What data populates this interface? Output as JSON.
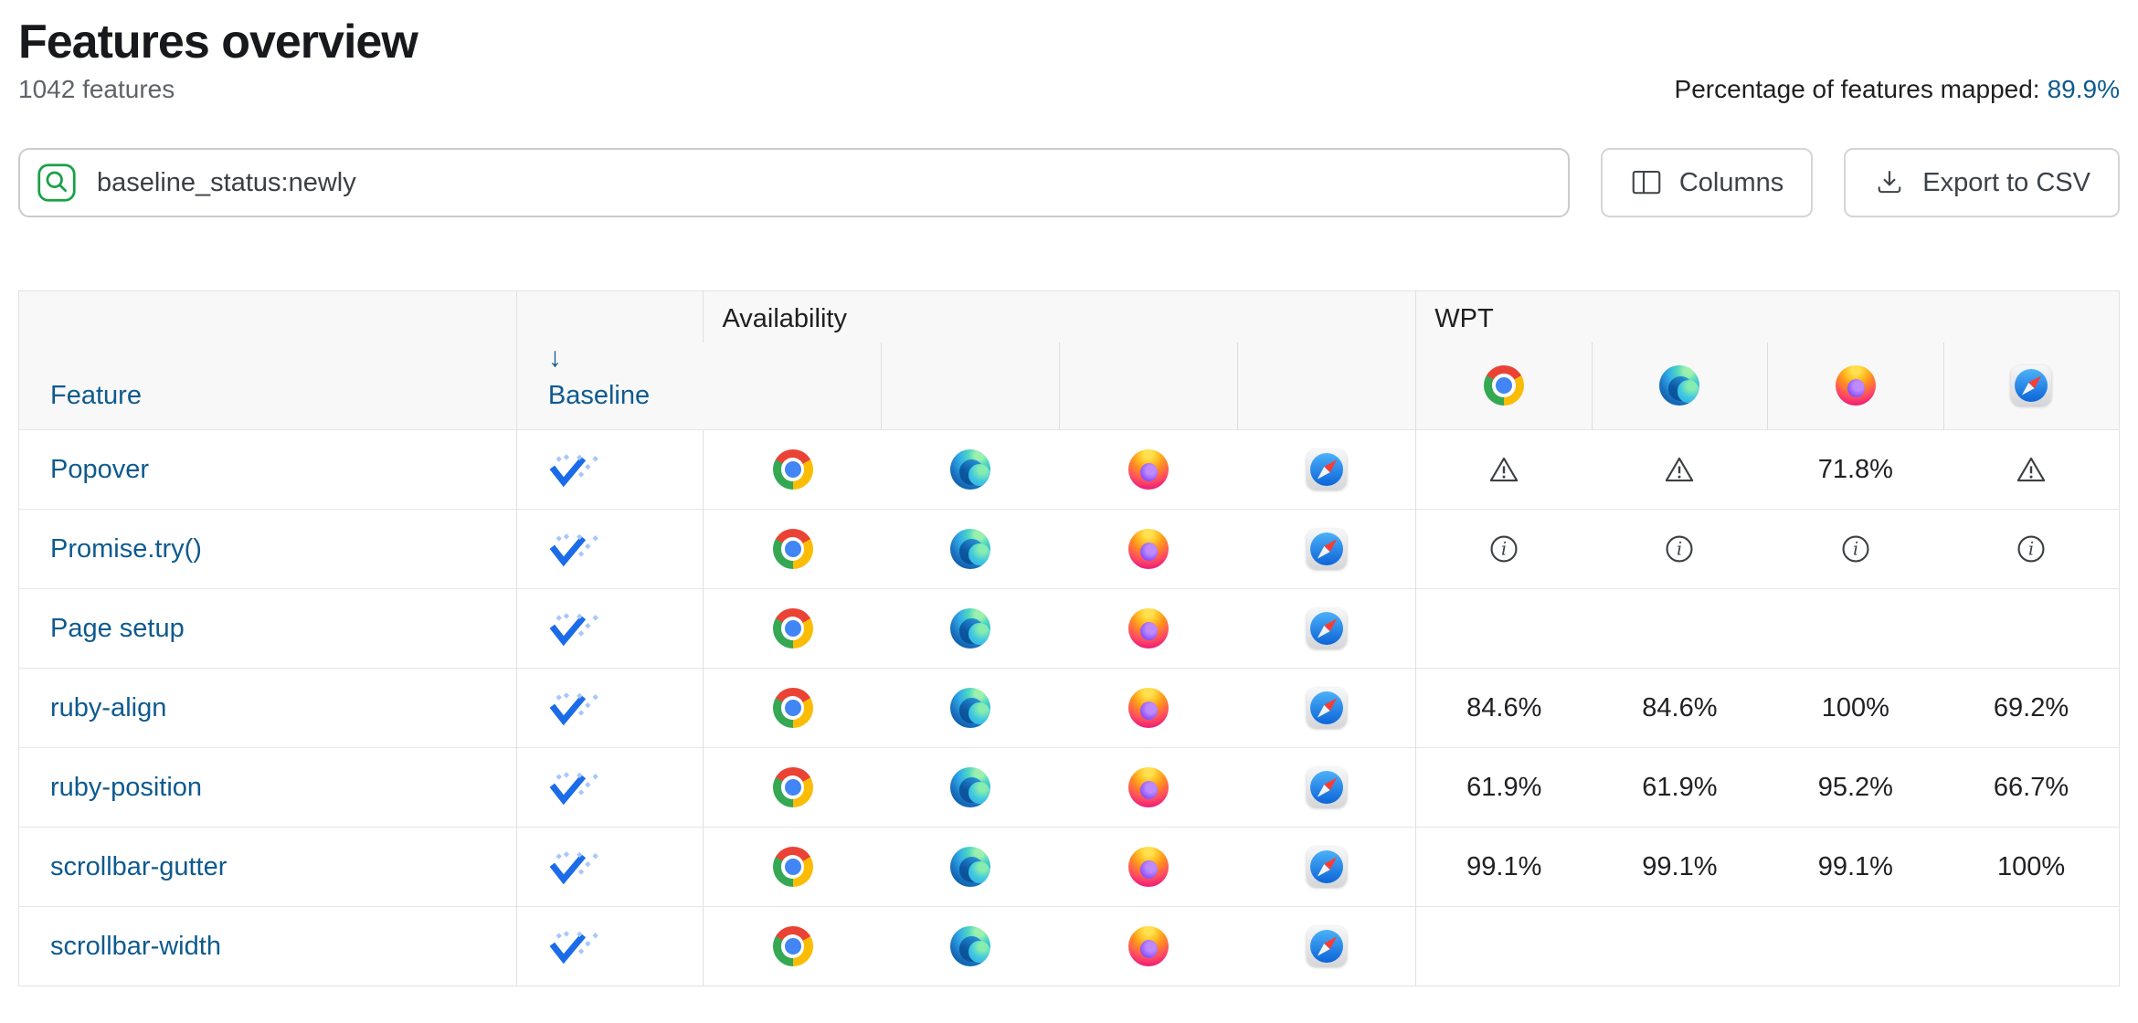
{
  "page": {
    "title": "Features overview",
    "feature_count": "1042 features",
    "mapped_label": "Percentage of features mapped:",
    "mapped_value": "89.9%"
  },
  "toolbar": {
    "search_value": "baseline_status:newly",
    "columns_label": "Columns",
    "export_label": "Export to CSV"
  },
  "table": {
    "headers": {
      "feature": "Feature",
      "baseline": "Baseline",
      "sort_arrow": "↓",
      "availability": "Availability",
      "wpt": "WPT"
    },
    "browsers": [
      "chrome",
      "edge",
      "firefox",
      "safari"
    ],
    "rows": [
      {
        "feature": "Popover",
        "baseline": "newly",
        "availability": [
          "chrome",
          "edge",
          "firefox",
          "safari"
        ],
        "wpt": [
          {
            "icon": "warning"
          },
          {
            "icon": "warning"
          },
          {
            "value": "71.8%"
          },
          {
            "icon": "warning"
          }
        ]
      },
      {
        "feature": "Promise.try()",
        "baseline": "newly",
        "availability": [
          "chrome",
          "edge",
          "firefox",
          "safari"
        ],
        "wpt": [
          {
            "icon": "info"
          },
          {
            "icon": "info"
          },
          {
            "icon": "info"
          },
          {
            "icon": "info"
          }
        ]
      },
      {
        "feature": "Page setup",
        "baseline": "newly",
        "availability": [
          "chrome",
          "edge",
          "firefox",
          "safari"
        ],
        "wpt": [
          null,
          null,
          null,
          null
        ]
      },
      {
        "feature": "ruby-align",
        "baseline": "newly",
        "availability": [
          "chrome",
          "edge",
          "firefox",
          "safari"
        ],
        "wpt": [
          {
            "value": "84.6%"
          },
          {
            "value": "84.6%"
          },
          {
            "value": "100%"
          },
          {
            "value": "69.2%"
          }
        ]
      },
      {
        "feature": "ruby-position",
        "baseline": "newly",
        "availability": [
          "chrome",
          "edge",
          "firefox",
          "safari"
        ],
        "wpt": [
          {
            "value": "61.9%"
          },
          {
            "value": "61.9%"
          },
          {
            "value": "95.2%"
          },
          {
            "value": "66.7%"
          }
        ]
      },
      {
        "feature": "scrollbar-gutter",
        "baseline": "newly",
        "availability": [
          "chrome",
          "edge",
          "firefox",
          "safari"
        ],
        "wpt": [
          {
            "value": "99.1%"
          },
          {
            "value": "99.1%"
          },
          {
            "value": "99.1%"
          },
          {
            "value": "100%"
          }
        ]
      },
      {
        "feature": "scrollbar-width",
        "baseline": "newly",
        "availability": [
          "chrome",
          "edge",
          "firefox",
          "safari"
        ],
        "wpt": [
          null,
          null,
          null,
          null
        ]
      }
    ]
  },
  "icons": {
    "search": "magnifier-in-green-rounded-square",
    "columns": "two-pane-layout",
    "export": "download-arrow-into-tray",
    "sort": "down-arrow",
    "baseline_newly": "blue-check-with-dotted-diamonds",
    "warning": "triangle-exclamation-outline",
    "info": "circle-italic-i-outline",
    "browsers": [
      "chrome",
      "edge",
      "firefox",
      "safari"
    ]
  },
  "colors": {
    "link": "#0e5a8f",
    "search_accent_green": "#18a146",
    "baseline_check_blue": "#1a6ce8",
    "baseline_dots_blue": "#a8c7fa",
    "header_bg": "#f8f8f8",
    "table_border": "#e3e3e3",
    "icon_gray": "#3c4043"
  }
}
